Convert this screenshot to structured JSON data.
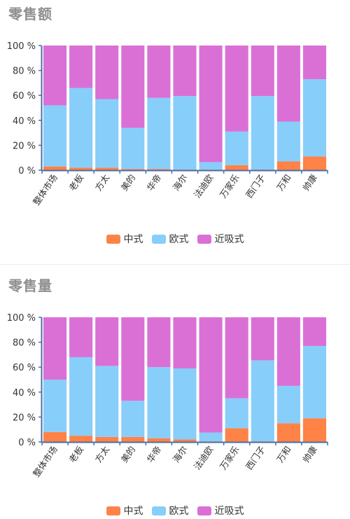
{
  "chart_data": [
    {
      "type": "bar",
      "stacked": true,
      "title": "零售额",
      "categories": [
        "整体市场",
        "老板",
        "方太",
        "美的",
        "华帝",
        "海尔",
        "法迪欧",
        "万家乐",
        "西门子",
        "万和",
        "帅康"
      ],
      "series": [
        {
          "name": "中式",
          "color": "#ff8247",
          "values": [
            3,
            2,
            2,
            1,
            1,
            0.5,
            0.5,
            4,
            0.5,
            7,
            11
          ]
        },
        {
          "name": "欧式",
          "color": "#87cefa",
          "values": [
            49,
            64,
            55,
            33,
            57,
            59,
            6,
            27,
            59,
            32,
            62
          ]
        },
        {
          "name": "近吸式",
          "color": "#da70d6",
          "values": [
            48,
            34,
            43,
            66,
            42,
            40.5,
            93.5,
            69,
            40.5,
            61,
            27
          ]
        }
      ],
      "ylim": [
        0,
        100
      ],
      "yticks": [
        "0 %",
        "20 %",
        "40 %",
        "60 %",
        "80 %",
        "100 %"
      ],
      "legend_position": "bottom"
    },
    {
      "type": "bar",
      "stacked": true,
      "title": "零售量",
      "categories": [
        "整体市场",
        "老板",
        "方太",
        "美的",
        "华帝",
        "海尔",
        "法迪欧",
        "万家乐",
        "西门子",
        "万和",
        "帅康"
      ],
      "series": [
        {
          "name": "中式",
          "color": "#ff8247",
          "values": [
            8,
            5,
            4,
            4,
            3,
            2,
            0.5,
            11,
            0.5,
            15,
            19
          ]
        },
        {
          "name": "欧式",
          "color": "#87cefa",
          "values": [
            42,
            63,
            57,
            29,
            57,
            57,
            7,
            24,
            65,
            30,
            58
          ]
        },
        {
          "name": "近吸式",
          "color": "#da70d6",
          "values": [
            50,
            32,
            39,
            67,
            40,
            41,
            92.5,
            65,
            34.5,
            55,
            23
          ]
        }
      ],
      "ylim": [
        0,
        100
      ],
      "yticks": [
        "0 %",
        "20 %",
        "40 %",
        "60 %",
        "80 %",
        "100 %"
      ],
      "legend_position": "bottom"
    }
  ]
}
